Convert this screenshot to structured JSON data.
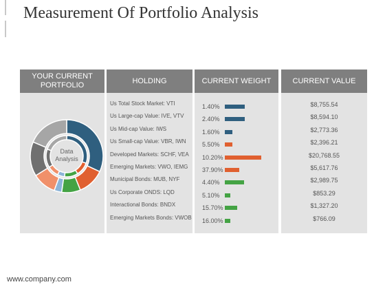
{
  "title": "Measurement Of Portfolio Analysis",
  "footer": "www.company.com",
  "columns": {
    "portfolio": "YOUR CURRENT PORTFOLIO",
    "holding": "HOLDING",
    "weight": "CURRENT WEIGHT",
    "value": "CURRENT VALUE"
  },
  "donut_label": "Data Analysis",
  "rows": [
    {
      "holding": "Us Total Stock Market: VTI",
      "weight": "1.40%",
      "value": "$8,755.54",
      "bar_level": 0.52,
      "bar_color": "#2f5f7f"
    },
    {
      "holding": "Us Large-cap Value: IVE, VTV",
      "weight": "2.40%",
      "value": "$8,594.10",
      "bar_level": 0.52,
      "bar_color": "#2f5f7f"
    },
    {
      "holding": "Us Mid-cap Value: IWS",
      "weight": "1.60%",
      "value": "$2,773.36",
      "bar_level": 0.2,
      "bar_color": "#2f5f7f"
    },
    {
      "holding": "Us Small-cap Value: VBR, IWN",
      "weight": "5.50%",
      "value": "$2,396.21",
      "bar_level": 0.2,
      "bar_color": "#e06030"
    },
    {
      "holding": "Developed Markets: SCHF, VEA",
      "weight": "10.20%",
      "value": "$20,768.55",
      "bar_level": 0.95,
      "bar_color": "#e06030"
    },
    {
      "holding": "Emerging Markets: VWO, IEMG",
      "weight": "37.90%",
      "value": "$5,617.76",
      "bar_level": 0.38,
      "bar_color": "#e06030"
    },
    {
      "holding": "Municipal Bonds: MUB, NYF",
      "weight": "4.40%",
      "value": "$2,989.75",
      "bar_level": 0.5,
      "bar_color": "#44a344"
    },
    {
      "holding": "Us Corporate ONDS: LQD",
      "weight": "5.10%",
      "value": "$853.29",
      "bar_level": 0.14,
      "bar_color": "#44a344"
    },
    {
      "holding": "Interactional Bonds: BNDX",
      "weight": "15.70%",
      "value": "$1,327.20",
      "bar_level": 0.32,
      "bar_color": "#44a344"
    },
    {
      "holding": "Emerging Markets Bonds: VWOB",
      "weight": "16.00%",
      "value": "$766.09",
      "bar_level": 0.14,
      "bar_color": "#44a344"
    }
  ],
  "donut_colors": {
    "blue": "#2f5f7f",
    "orange": "#e06030",
    "green": "#44a344",
    "light_blue": "#8cb4d8",
    "salmon": "#f0906a",
    "dark_gray": "#707070",
    "light_gray": "#a6a6a6"
  }
}
